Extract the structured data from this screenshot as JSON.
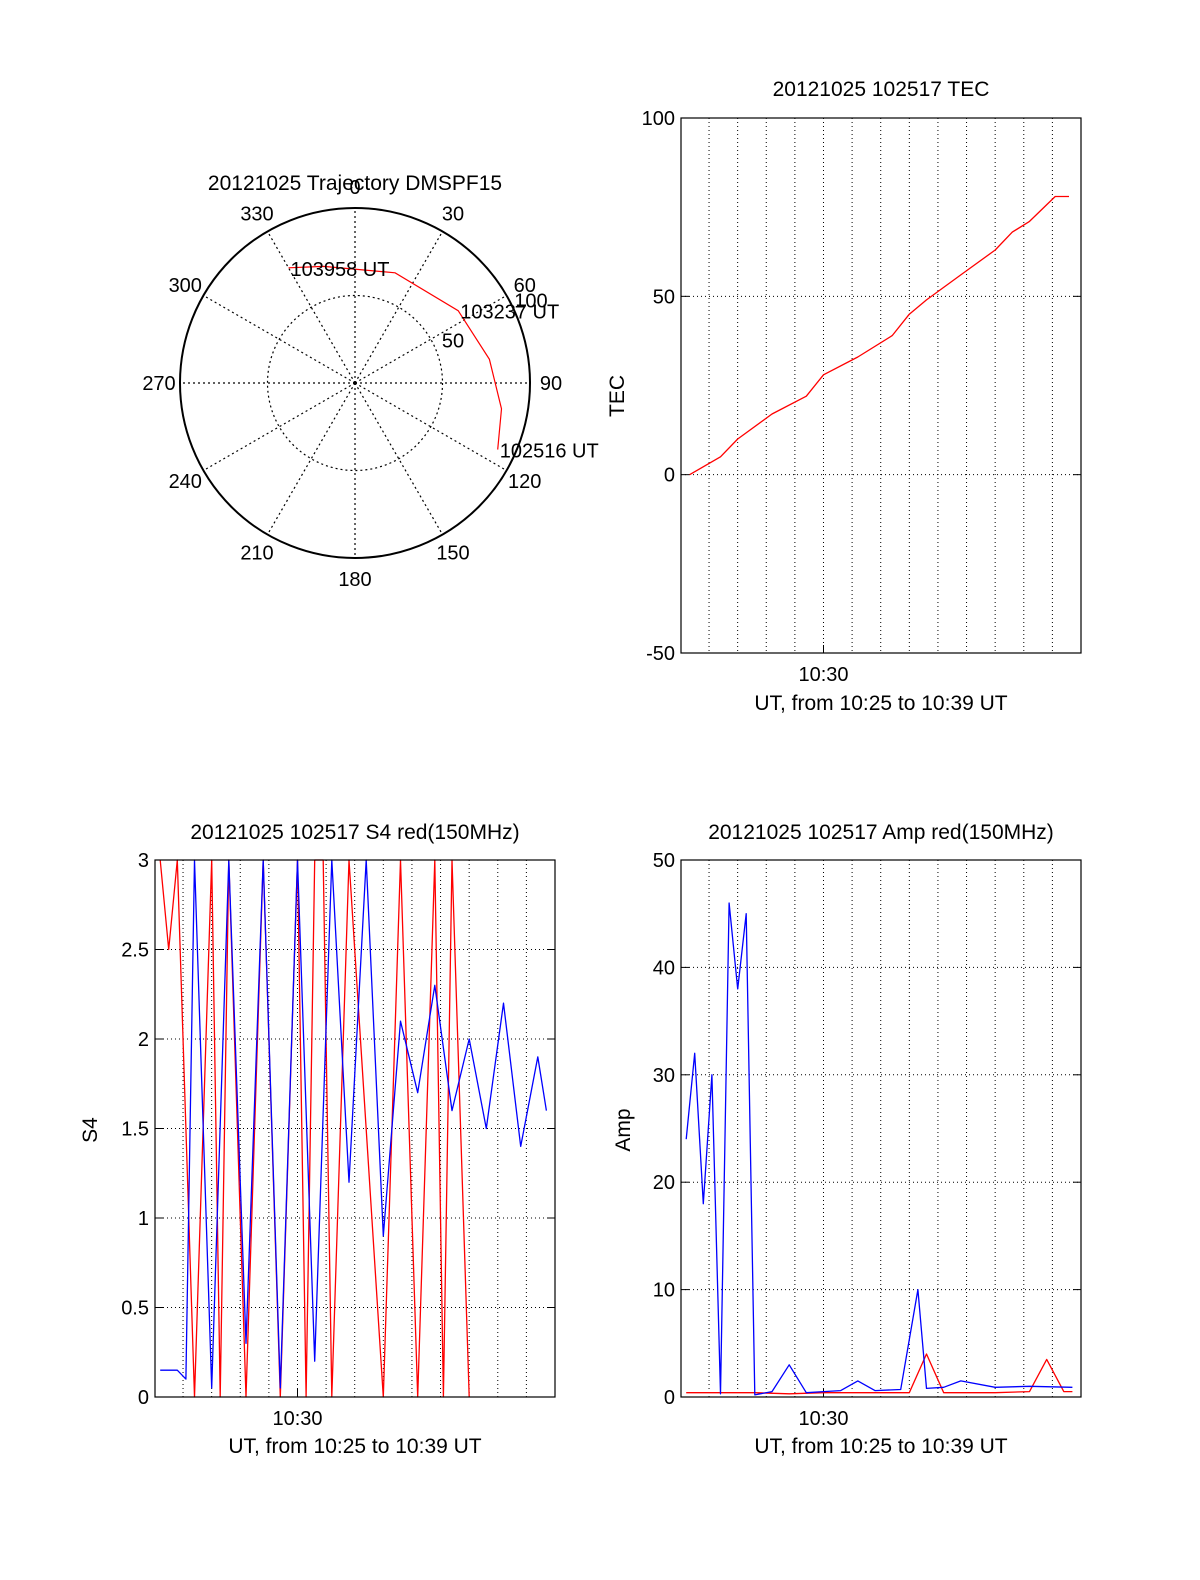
{
  "colors": {
    "primary_series": "#ff0000",
    "secondary_series": "#0000ff",
    "axes": "#000000",
    "grid": "#000000"
  },
  "chart_data": [
    {
      "type": "polar",
      "title": "20121025 Trajectory DMSPF15",
      "angle_ticks": [
        "0",
        "30",
        "60",
        "90",
        "120",
        "150",
        "180",
        "210",
        "240",
        "270",
        "300",
        "330"
      ],
      "angle_tick_values": [
        0,
        30,
        60,
        90,
        120,
        150,
        180,
        210,
        240,
        270,
        300,
        330
      ],
      "radial_ticks": [
        "50",
        "100"
      ],
      "radial_tick_values": [
        50,
        100
      ],
      "radial_range": [
        0,
        100
      ],
      "grid": true,
      "series": [
        {
          "color": "#ff0000",
          "points": [
            {
              "azimuth": 115,
              "r": 90
            },
            {
              "azimuth": 100,
              "r": 85
            },
            {
              "azimuth": 80,
              "r": 78
            },
            {
              "azimuth": 55,
              "r": 72
            },
            {
              "azimuth": 20,
              "r": 67
            },
            {
              "azimuth": 345,
              "r": 69
            },
            {
              "azimuth": 330,
              "r": 76
            }
          ]
        }
      ],
      "annotations": [
        {
          "text": "103958 UT",
          "azimuth": 330,
          "r": 76
        },
        {
          "text": "103237 UT",
          "azimuth": 55,
          "r": 72
        },
        {
          "text": "102516 UT",
          "azimuth": 115,
          "r": 90
        }
      ]
    },
    {
      "type": "line",
      "title": "20121025 102517 TEC",
      "xlabel": "UT, from 10:25 to 10:39 UT",
      "ylabel": "TEC",
      "xlim": [
        10.417,
        10.65
      ],
      "ylim": [
        -50,
        100
      ],
      "yticks": [
        "-50",
        "0",
        "50",
        "100"
      ],
      "ytick_values": [
        -50,
        0,
        50,
        100
      ],
      "xticks": [
        "10:30"
      ],
      "xtick_values": [
        10.5
      ],
      "grid": true,
      "series": [
        {
          "color": "#ff0000",
          "x": [
            10.422,
            10.44,
            10.45,
            10.47,
            10.49,
            10.5,
            10.52,
            10.54,
            10.55,
            10.56,
            10.58,
            10.6,
            10.61,
            10.62,
            10.635,
            10.643
          ],
          "y": [
            0,
            5,
            10,
            17,
            22,
            28,
            33,
            39,
            45,
            49,
            56,
            63,
            68,
            71,
            78,
            78
          ]
        }
      ]
    },
    {
      "type": "line",
      "title": "20121025 102517 S4 red(150MHz)",
      "xlabel": "UT, from 10:25 to 10:39 UT",
      "ylabel": "S4",
      "xlim": [
        10.417,
        10.65
      ],
      "ylim": [
        0,
        3
      ],
      "yticks": [
        "0",
        "0.5",
        "1",
        "1.5",
        "2",
        "2.5",
        "3"
      ],
      "ytick_values": [
        0,
        0.5,
        1,
        1.5,
        2,
        2.5,
        3
      ],
      "xticks": [
        "10:30"
      ],
      "xtick_values": [
        10.5
      ],
      "grid": true,
      "series": [
        {
          "color": "#ff0000",
          "x": [
            10.42,
            10.425,
            10.43,
            10.44,
            10.45,
            10.455,
            10.46,
            10.47,
            10.48,
            10.49,
            10.5,
            10.505,
            10.51,
            10.515,
            10.52,
            10.53,
            10.55,
            10.56,
            10.57,
            10.58,
            10.585,
            10.59,
            10.6
          ],
          "y": [
            3,
            2.5,
            3,
            0,
            3,
            0,
            3,
            0,
            3,
            0,
            3,
            0,
            3,
            3,
            0,
            3,
            0,
            3,
            0,
            3,
            0,
            3,
            0
          ]
        },
        {
          "color": "#0000ff",
          "x": [
            10.42,
            10.43,
            10.435,
            10.44,
            10.45,
            10.46,
            10.47,
            10.48,
            10.49,
            10.5,
            10.51,
            10.52,
            10.53,
            10.54,
            10.55,
            10.56,
            10.57,
            10.58,
            10.59,
            10.6,
            10.61,
            10.62,
            10.63,
            10.64,
            10.645
          ],
          "y": [
            0.15,
            0.15,
            0.1,
            3,
            0.05,
            3,
            0.3,
            3,
            0.05,
            3,
            0.2,
            3,
            1.2,
            3,
            0.9,
            2.1,
            1.7,
            2.3,
            1.6,
            2.0,
            1.5,
            2.2,
            1.4,
            1.9,
            1.6
          ]
        }
      ]
    },
    {
      "type": "line",
      "title": "20121025 102517 Amp red(150MHz)",
      "xlabel": "UT, from 10:25 to 10:39 UT",
      "ylabel": "Amp",
      "xlim": [
        10.417,
        10.65
      ],
      "ylim": [
        0,
        50
      ],
      "yticks": [
        "0",
        "10",
        "20",
        "30",
        "40",
        "50"
      ],
      "ytick_values": [
        0,
        10,
        20,
        30,
        40,
        50
      ],
      "xticks": [
        "10:30"
      ],
      "xtick_values": [
        10.5
      ],
      "grid": true,
      "series": [
        {
          "color": "#ff0000",
          "x": [
            10.42,
            10.46,
            10.48,
            10.5,
            10.55,
            10.56,
            10.57,
            10.6,
            10.62,
            10.63,
            10.64,
            10.645
          ],
          "y": [
            0.4,
            0.4,
            0.3,
            0.4,
            0.4,
            4,
            0.4,
            0.4,
            0.5,
            3.5,
            0.5,
            0.5
          ]
        },
        {
          "color": "#0000ff",
          "x": [
            10.42,
            10.425,
            10.43,
            10.435,
            10.44,
            10.445,
            10.45,
            10.455,
            10.46,
            10.47,
            10.48,
            10.49,
            10.5,
            10.51,
            10.52,
            10.53,
            10.545,
            10.555,
            10.56,
            10.57,
            10.58,
            10.6,
            10.62,
            10.645
          ],
          "y": [
            24,
            32,
            18,
            30,
            0.3,
            46,
            38,
            45,
            0.2,
            0.5,
            3,
            0.4,
            0.5,
            0.6,
            1.5,
            0.6,
            0.7,
            10,
            0.8,
            0.9,
            1.5,
            0.9,
            1.0,
            0.9
          ]
        }
      ]
    }
  ]
}
